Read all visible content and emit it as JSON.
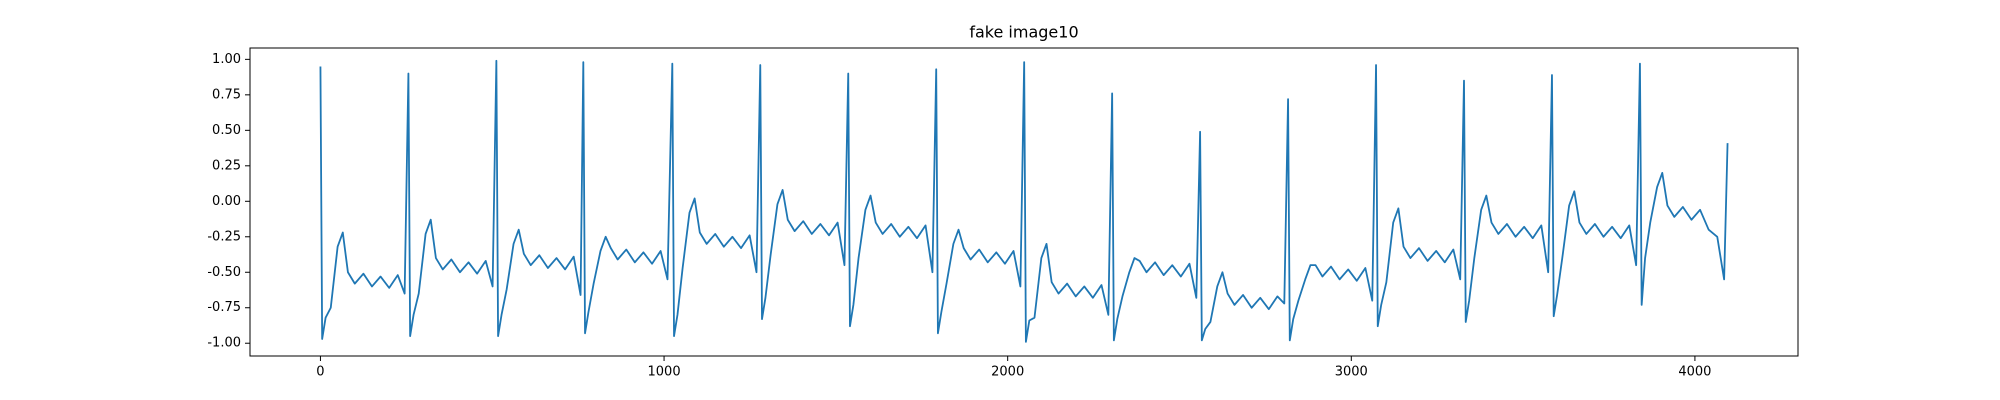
{
  "chart_data": {
    "type": "line",
    "title": "fake image10",
    "color": "#1f77b4",
    "x": [
      0,
      5,
      15,
      30,
      50,
      65,
      80,
      100,
      125,
      150,
      175,
      200,
      225,
      245,
      256,
      261,
      271,
      286,
      306,
      321,
      336,
      356,
      381,
      406,
      431,
      456,
      481,
      501,
      512,
      517,
      527,
      542,
      562,
      577,
      592,
      612,
      637,
      662,
      687,
      712,
      737,
      757,
      765,
      770,
      780,
      795,
      815,
      830,
      845,
      865,
      890,
      915,
      940,
      965,
      990,
      1010,
      1024,
      1029,
      1039,
      1054,
      1074,
      1089,
      1104,
      1124,
      1149,
      1174,
      1199,
      1224,
      1249,
      1269,
      1280,
      1285,
      1295,
      1310,
      1330,
      1345,
      1360,
      1380,
      1405,
      1430,
      1455,
      1480,
      1505,
      1525,
      1536,
      1541,
      1551,
      1566,
      1586,
      1601,
      1616,
      1636,
      1661,
      1686,
      1711,
      1736,
      1761,
      1781,
      1792,
      1797,
      1807,
      1822,
      1842,
      1857,
      1872,
      1892,
      1917,
      1942,
      1967,
      1992,
      2017,
      2037,
      2048,
      2053,
      2063,
      2078,
      2098,
      2113,
      2128,
      2148,
      2173,
      2198,
      2223,
      2248,
      2273,
      2293,
      2304,
      2309,
      2319,
      2334,
      2354,
      2369,
      2384,
      2404,
      2429,
      2454,
      2479,
      2504,
      2529,
      2549,
      2560,
      2565,
      2575,
      2590,
      2610,
      2625,
      2640,
      2660,
      2685,
      2710,
      2735,
      2760,
      2785,
      2805,
      2816,
      2821,
      2831,
      2846,
      2866,
      2881,
      2896,
      2916,
      2941,
      2966,
      2991,
      3016,
      3041,
      3061,
      3072,
      3077,
      3087,
      3102,
      3122,
      3137,
      3152,
      3172,
      3197,
      3222,
      3247,
      3272,
      3297,
      3317,
      3328,
      3333,
      3343,
      3358,
      3378,
      3393,
      3408,
      3428,
      3453,
      3478,
      3503,
      3528,
      3553,
      3573,
      3584,
      3589,
      3599,
      3614,
      3634,
      3649,
      3664,
      3684,
      3709,
      3734,
      3759,
      3784,
      3809,
      3829,
      3840,
      3845,
      3855,
      3870,
      3890,
      3905,
      3920,
      3940,
      3965,
      3990,
      4015,
      4040,
      4065,
      4085,
      4095
    ],
    "values": [
      0.95,
      -0.97,
      -0.82,
      -0.75,
      -0.32,
      -0.22,
      -0.5,
      -0.58,
      -0.51,
      -0.6,
      -0.53,
      -0.61,
      -0.52,
      -0.65,
      0.9,
      -0.95,
      -0.8,
      -0.65,
      -0.23,
      -0.13,
      -0.4,
      -0.48,
      -0.41,
      -0.5,
      -0.43,
      -0.51,
      -0.42,
      -0.6,
      0.99,
      -0.95,
      -0.8,
      -0.62,
      -0.3,
      -0.2,
      -0.37,
      -0.45,
      -0.38,
      -0.47,
      -0.4,
      -0.48,
      -0.39,
      -0.66,
      0.98,
      -0.93,
      -0.78,
      -0.58,
      -0.35,
      -0.25,
      -0.33,
      -0.41,
      -0.34,
      -0.43,
      -0.36,
      -0.44,
      -0.35,
      -0.55,
      0.97,
      -0.95,
      -0.8,
      -0.47,
      -0.08,
      0.02,
      -0.22,
      -0.3,
      -0.23,
      -0.32,
      -0.25,
      -0.33,
      -0.24,
      -0.5,
      0.96,
      -0.83,
      -0.68,
      -0.38,
      -0.02,
      0.08,
      -0.13,
      -0.21,
      -0.14,
      -0.23,
      -0.16,
      -0.24,
      -0.15,
      -0.45,
      0.9,
      -0.88,
      -0.73,
      -0.4,
      -0.06,
      0.04,
      -0.15,
      -0.23,
      -0.16,
      -0.25,
      -0.18,
      -0.26,
      -0.17,
      -0.5,
      0.93,
      -0.93,
      -0.78,
      -0.58,
      -0.3,
      -0.2,
      -0.33,
      -0.41,
      -0.34,
      -0.43,
      -0.36,
      -0.44,
      -0.35,
      -0.6,
      0.98,
      -0.99,
      -0.84,
      -0.82,
      -0.4,
      -0.3,
      -0.57,
      -0.65,
      -0.58,
      -0.67,
      -0.6,
      -0.68,
      -0.59,
      -0.8,
      0.76,
      -0.98,
      -0.83,
      -0.67,
      -0.5,
      -0.4,
      -0.42,
      -0.5,
      -0.43,
      -0.52,
      -0.45,
      -0.53,
      -0.44,
      -0.68,
      0.49,
      -0.98,
      -0.9,
      -0.85,
      -0.6,
      -0.5,
      -0.65,
      -0.73,
      -0.66,
      -0.75,
      -0.68,
      -0.76,
      -0.67,
      -0.72,
      0.72,
      -0.98,
      -0.83,
      -0.7,
      -0.55,
      -0.45,
      -0.45,
      -0.53,
      -0.46,
      -0.55,
      -0.48,
      -0.56,
      -0.47,
      -0.7,
      0.96,
      -0.88,
      -0.73,
      -0.57,
      -0.15,
      -0.05,
      -0.32,
      -0.4,
      -0.33,
      -0.42,
      -0.35,
      -0.43,
      -0.34,
      -0.55,
      0.85,
      -0.85,
      -0.7,
      -0.4,
      -0.06,
      0.04,
      -0.15,
      -0.23,
      -0.16,
      -0.25,
      -0.18,
      -0.26,
      -0.17,
      -0.5,
      0.89,
      -0.81,
      -0.66,
      -0.4,
      -0.03,
      0.07,
      -0.15,
      -0.23,
      -0.16,
      -0.25,
      -0.18,
      -0.26,
      -0.17,
      -0.45,
      0.97,
      -0.73,
      -0.4,
      -0.15,
      0.1,
      0.2,
      -0.03,
      -0.11,
      -0.04,
      -0.13,
      -0.06,
      -0.2,
      -0.25,
      -0.55,
      0.41
    ],
    "xlim": [
      -205,
      4300
    ],
    "ylim": [
      -1.09,
      1.08
    ],
    "xticks": [
      0,
      1000,
      2000,
      3000,
      4000
    ],
    "yticks": [
      {
        "value": -1,
        "label": "-1.00"
      },
      {
        "value": -0.75,
        "label": "-0.75"
      },
      {
        "value": -0.5,
        "label": "-0.50"
      },
      {
        "value": -0.25,
        "label": "-0.25"
      },
      {
        "value": 0,
        "label": "0.00"
      },
      {
        "value": 0.25,
        "label": "0.25"
      },
      {
        "value": 0.5,
        "label": "0.50"
      },
      {
        "value": 0.75,
        "label": "0.75"
      },
      {
        "value": 1,
        "label": "1.00"
      }
    ]
  }
}
